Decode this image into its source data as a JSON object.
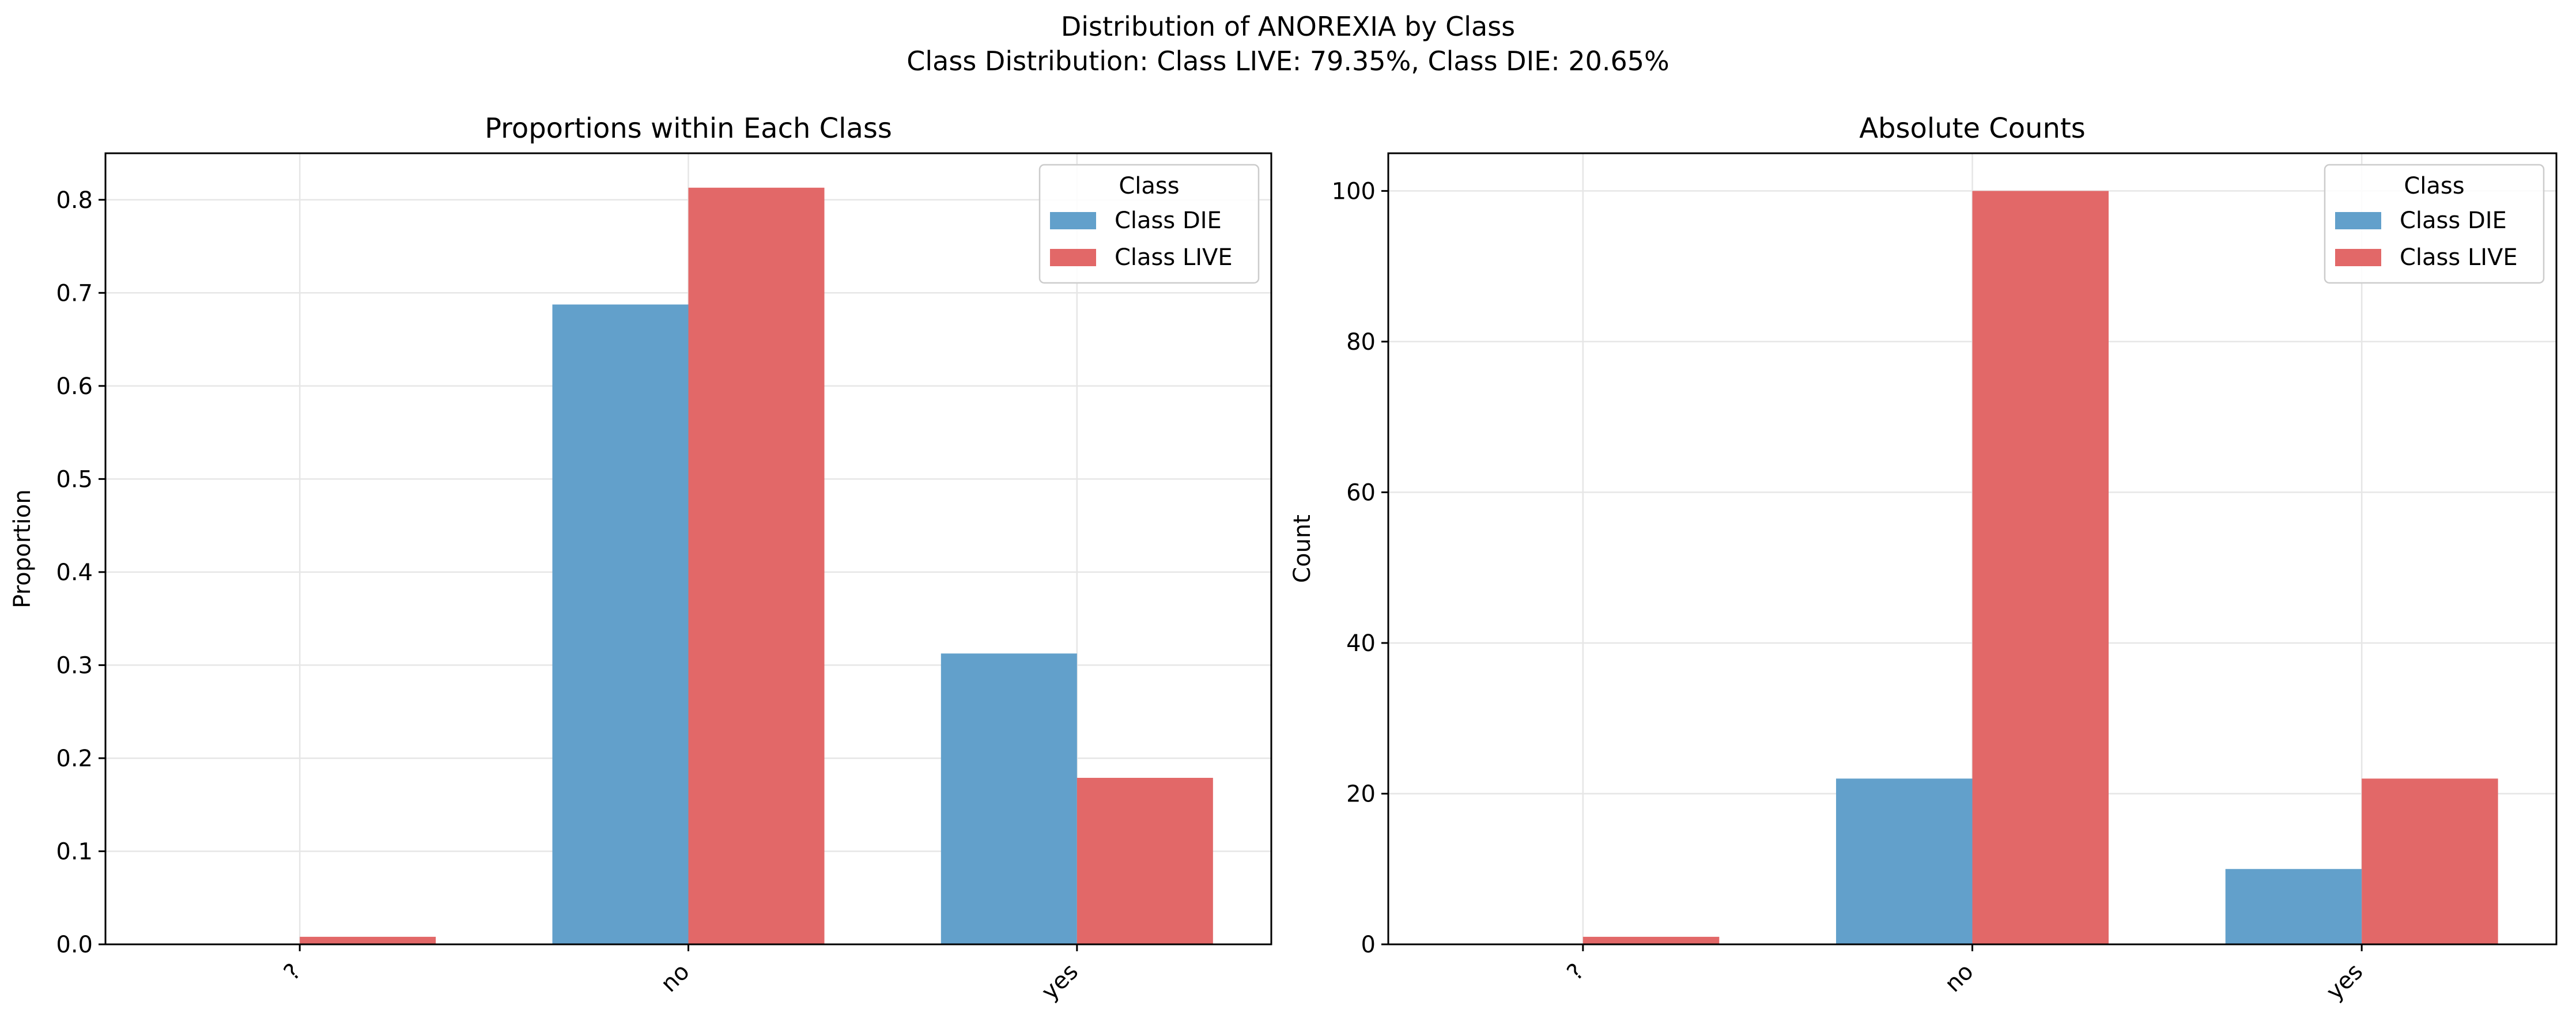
{
  "figure": {
    "title_line1": "Distribution of ANOREXIA by Class",
    "title_line2": "Class Distribution: Class LIVE: 79.35%, Class DIE: 20.65%"
  },
  "colors": {
    "die": "#62a0cb",
    "live": "#e26868"
  },
  "chart_data": [
    {
      "type": "bar",
      "title": "Proportions within Each Class",
      "xlabel": "",
      "ylabel": "Proportion",
      "categories": [
        "?",
        "no",
        "yes"
      ],
      "ylim": [
        0,
        0.85
      ],
      "yticks": [
        0.0,
        0.1,
        0.2,
        0.3,
        0.4,
        0.5,
        0.6,
        0.7,
        0.8
      ],
      "ytick_labels": [
        "0.0",
        "0.1",
        "0.2",
        "0.3",
        "0.4",
        "0.5",
        "0.6",
        "0.7",
        "0.8"
      ],
      "grid": true,
      "legend": {
        "title": "Class",
        "placement": "top-right"
      },
      "series": [
        {
          "name": "Class DIE",
          "values": [
            0.0,
            0.6875,
            0.3125
          ]
        },
        {
          "name": "Class LIVE",
          "values": [
            0.0081,
            0.813,
            0.1789
          ]
        }
      ]
    },
    {
      "type": "bar",
      "title": "Absolute Counts",
      "xlabel": "",
      "ylabel": "Count",
      "categories": [
        "?",
        "no",
        "yes"
      ],
      "ylim": [
        0,
        105
      ],
      "yticks": [
        0,
        20,
        40,
        60,
        80,
        100
      ],
      "ytick_labels": [
        "0",
        "20",
        "40",
        "60",
        "80",
        "100"
      ],
      "grid": true,
      "legend": {
        "title": "Class",
        "placement": "top-right"
      },
      "series": [
        {
          "name": "Class DIE",
          "values": [
            0,
            22,
            10
          ]
        },
        {
          "name": "Class LIVE",
          "values": [
            1,
            100,
            22
          ]
        }
      ]
    }
  ]
}
